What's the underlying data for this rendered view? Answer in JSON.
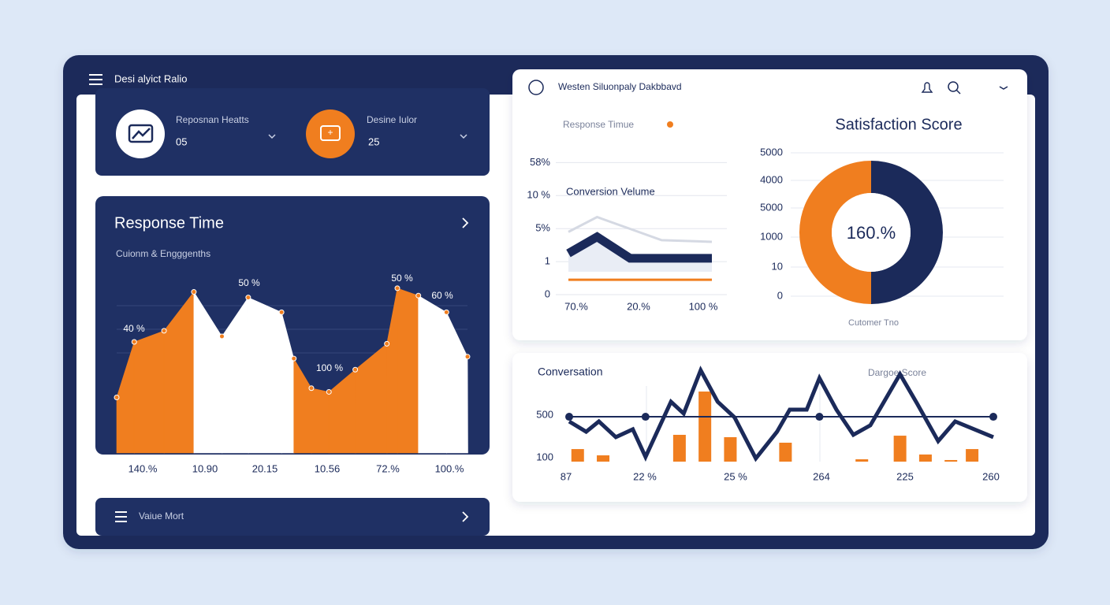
{
  "sidebar": {
    "title": "Desi alyict Ralio",
    "stats": [
      {
        "label": "Reposnan Heatts",
        "value": "05"
      },
      {
        "label": "Desine Iulor",
        "value": "25"
      }
    ],
    "footer": "Vaiue Mort"
  },
  "response_card": {
    "title": "Response Time",
    "subtitle": "Cuionm & Engggenths",
    "chart": {
      "type": "area",
      "xlim": [
        0,
        100
      ],
      "ylim": [
        0,
        100
      ],
      "x": [
        0,
        5,
        13.5,
        22,
        30,
        37.5,
        47,
        50.5,
        55.5,
        60.5,
        68,
        77,
        80,
        86,
        94,
        100
      ],
      "values": [
        30,
        60,
        66,
        87,
        63,
        84,
        76,
        51,
        35,
        33,
        45,
        59,
        89,
        85,
        76,
        52
      ],
      "segment_colors": [
        "#f07e1f",
        "#f07e1f",
        "#f07e1f",
        "#ffffff",
        "#ffffff",
        "#ffffff",
        "#ffffff",
        "#f07e1f",
        "#f07e1f",
        "#f07e1f",
        "#f07e1f",
        "#f07e1f",
        "#f07e1f",
        "#ffffff",
        "#ffffff"
      ],
      "annotations": [
        "40 %",
        "50 %",
        "100 %",
        "50 %",
        "60 %"
      ],
      "x_labels": [
        "140.%",
        "10.90",
        "20.15",
        "10.56",
        "72.%",
        "100.%"
      ]
    }
  },
  "header": {
    "title": "Westen Siluonpaly Dakbbavd"
  },
  "line_panel": {
    "title": "Response Timue",
    "inner_title": "Conversion Velume",
    "chart": {
      "type": "line",
      "xlim": [
        0,
        100
      ],
      "ylim": [
        0,
        4.2
      ],
      "yticks": [
        0,
        1,
        {
          "value": 2,
          "label": "5%"
        },
        {
          "value": 3,
          "label": "10 %"
        },
        {
          "value": 4,
          "label": "58%"
        }
      ],
      "grid": true,
      "x_labels": [
        "70.%",
        "20.%",
        "100 %"
      ],
      "series": [
        {
          "color": "#d5d9e3",
          "x": [
            0,
            20,
            65,
            100
          ],
          "values": [
            1.9,
            2.35,
            1.65,
            1.6
          ]
        },
        {
          "color": "#1b2a5a",
          "x": [
            0,
            20,
            43,
            100
          ],
          "values": [
            1.25,
            1.75,
            1.1,
            1.1
          ]
        },
        {
          "color": "#f07e1f",
          "x": [
            0,
            100
          ],
          "values": [
            0.45,
            0.45
          ]
        }
      ]
    }
  },
  "donut_panel": {
    "title": "Satisfaction Score",
    "chart": {
      "type": "pie",
      "values": [
        50,
        50
      ],
      "colors": [
        "#1b2a5a",
        "#f07e1f"
      ],
      "center_label": "160.%",
      "axis_labels": [
        "5000",
        "4000",
        "5000",
        "1000",
        "10",
        "0"
      ],
      "caption": "Cutomer Tno"
    }
  },
  "bottom_panel": {
    "title": "Conversation",
    "subtitle": "Dargoe Score",
    "chart": {
      "type": "bar_line",
      "xlim": [
        0,
        100
      ],
      "ylim": [
        63,
        1000
      ],
      "yticks": [
        100,
        500
      ],
      "x_labels": [
        "87",
        "22 %",
        "25 %",
        "264",
        "225",
        "260"
      ],
      "bars": {
        "color": "#f07e1f",
        "x": [
          2,
          8,
          26,
          32,
          38,
          51,
          69,
          78,
          84,
          90,
          95
        ],
        "values": [
          181,
          122,
          315,
          722,
          293,
          241,
          85,
          307,
          130,
          78,
          181
        ]
      },
      "series": [
        {
          "color": "#1b2a5a",
          "x": [
            0,
            4,
            7,
            11,
            15,
            18,
            24,
            27,
            31,
            35,
            39,
            44,
            49,
            52,
            56,
            59,
            63,
            67,
            71,
            78,
            82,
            87,
            91,
            100
          ],
          "values": [
            441,
            344,
            441,
            293,
            367,
            107,
            626,
            515,
            922,
            626,
            478,
            93,
            344,
            552,
            552,
            848,
            552,
            315,
            404,
            885,
            611,
            256,
            441,
            293
          ]
        },
        {
          "color": "#1b2a5a",
          "x": [
            0,
            18,
            59,
            100
          ],
          "values": [
            485,
            485,
            485,
            485
          ],
          "markers": true
        }
      ]
    }
  }
}
